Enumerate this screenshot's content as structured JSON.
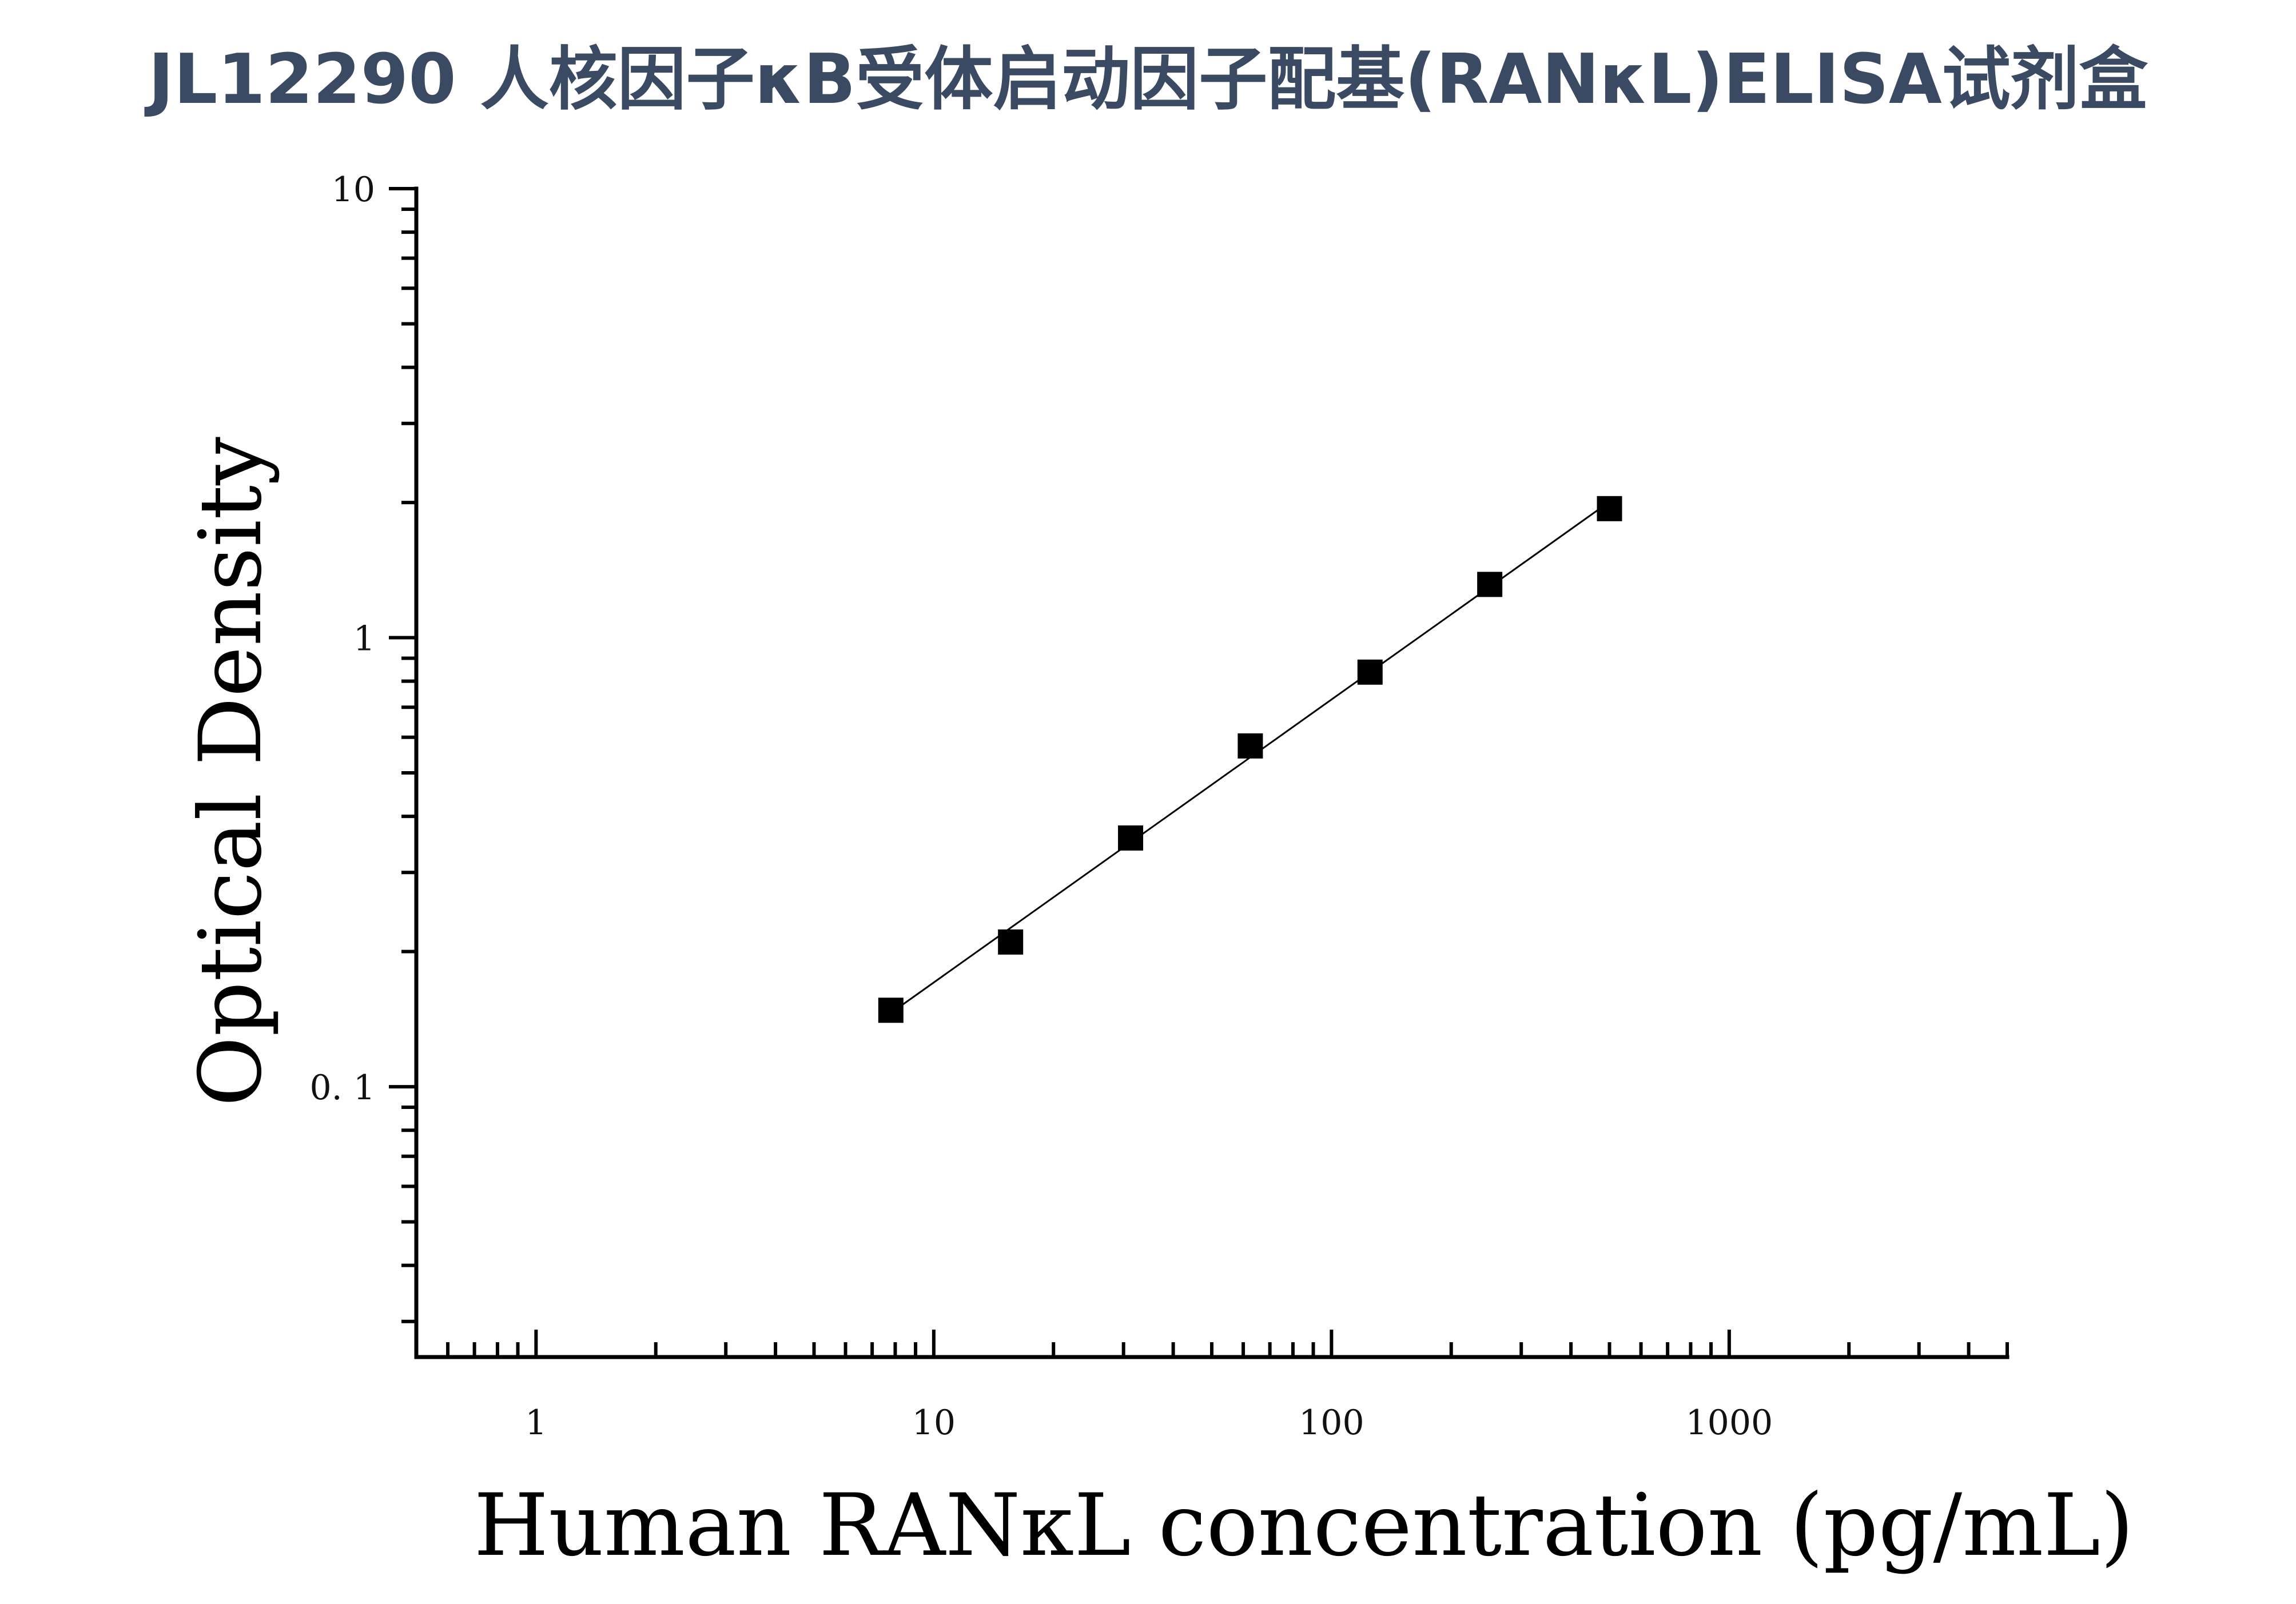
{
  "chart_data": {
    "type": "scatter",
    "title": "JL12290 人核因子κB受体启动因子配基(RANκL)ELISA试剂盒",
    "xlabel": "Human RANκL concentration (pg/mL)",
    "ylabel": "Optical Density",
    "x_scale": "log",
    "y_scale": "log",
    "xlim": [
      0.5,
      5000
    ],
    "ylim": [
      0.025,
      10
    ],
    "x_ticks": [
      {
        "value": 1,
        "label": "1"
      },
      {
        "value": 10,
        "label": "10"
      },
      {
        "value": 100,
        "label": "100"
      },
      {
        "value": 1000,
        "label": "1000"
      }
    ],
    "y_ticks": [
      {
        "value": 0.1,
        "label": "0. 1"
      },
      {
        "value": 1,
        "label": "1"
      },
      {
        "value": 10,
        "label": "10"
      }
    ],
    "grid": false,
    "series": [
      {
        "x": [
          7.8,
          15.6,
          31.25,
          62.5,
          125,
          250,
          500
        ],
        "y": [
          0.148,
          0.21,
          0.358,
          0.574,
          0.838,
          1.314,
          1.938
        ],
        "marker": "square",
        "fit_line": true,
        "color": "#000000"
      }
    ]
  }
}
